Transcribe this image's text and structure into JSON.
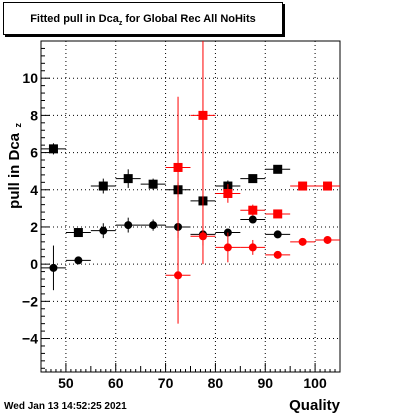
{
  "title": {
    "main": "Fitted pull in Dca",
    "sub": "z",
    "rest": " for Global Rec All NoHits"
  },
  "footer": {
    "timestamp": "Wed Jan 13 14:52:25 2021"
  },
  "colors": {
    "series_black": "#000000",
    "series_red": "#ff0000",
    "grid": "#000000"
  },
  "chart_data": {
    "type": "scatter",
    "xlabel": "Quality",
    "ylabel": "pull in Dca",
    "ylabel_sub": "z",
    "xlim": [
      45,
      105
    ],
    "ylim": [
      -5.8,
      12.0
    ],
    "xticks": [
      50,
      60,
      70,
      80,
      90,
      100
    ],
    "yticks": [
      -4,
      -2,
      0,
      2,
      4,
      6,
      8,
      10
    ],
    "grid": true,
    "series": [
      {
        "marker": "square",
        "color": "#000000",
        "points": [
          {
            "x": 47.5,
            "y": 6.2,
            "yerr": 0.3
          },
          {
            "x": 52.5,
            "y": 1.7,
            "yerr": 0.1
          },
          {
            "x": 57.5,
            "y": 4.2,
            "yerr": 0.4
          },
          {
            "x": 62.5,
            "y": 4.6,
            "yerr": 0.5
          },
          {
            "x": 67.5,
            "y": 4.3,
            "yerr": 0.3
          },
          {
            "x": 72.5,
            "y": 4.0,
            "yerr": 0.4
          },
          {
            "x": 77.5,
            "y": 3.4,
            "yerr": 0.3
          },
          {
            "x": 82.5,
            "y": 4.2,
            "yerr": 0.3
          },
          {
            "x": 87.5,
            "y": 4.6,
            "yerr": 0.2
          },
          {
            "x": 92.5,
            "y": 5.1,
            "yerr": 0.2
          }
        ]
      },
      {
        "marker": "circle",
        "color": "#000000",
        "points": [
          {
            "x": 47.5,
            "y": -0.2,
            "yerr": 1.2
          },
          {
            "x": 52.5,
            "y": 0.2,
            "yerr": 0.1
          },
          {
            "x": 57.5,
            "y": 1.8,
            "yerr": 0.4
          },
          {
            "x": 62.5,
            "y": 2.1,
            "yerr": 0.4
          },
          {
            "x": 67.5,
            "y": 2.1,
            "yerr": 0.3
          },
          {
            "x": 72.5,
            "y": 2.0,
            "yerr": 0.2
          },
          {
            "x": 77.5,
            "y": 1.6,
            "yerr": 0.2
          },
          {
            "x": 82.5,
            "y": 1.7,
            "yerr": 0.2
          },
          {
            "x": 87.5,
            "y": 2.4,
            "yerr": 0.2
          },
          {
            "x": 92.5,
            "y": 1.6,
            "yerr": 0.2
          }
        ]
      },
      {
        "marker": "square",
        "color": "#ff0000",
        "points": [
          {
            "x": 72.5,
            "y": 5.2,
            "yerr": 3.8
          },
          {
            "x": 77.5,
            "y": 8.0,
            "yerr": 8.0
          },
          {
            "x": 82.5,
            "y": 3.8,
            "yerr": 0.5
          },
          {
            "x": 87.5,
            "y": 2.9,
            "yerr": 0.3
          },
          {
            "x": 92.5,
            "y": 2.7,
            "yerr": 0.2
          },
          {
            "x": 97.5,
            "y": 4.2,
            "yerr": 0.1
          },
          {
            "x": 102.5,
            "y": 4.2,
            "yerr": 0.1
          }
        ]
      },
      {
        "marker": "circle",
        "color": "#ff0000",
        "points": [
          {
            "x": 72.5,
            "y": -0.6,
            "yerr": 2.6
          },
          {
            "x": 77.5,
            "y": 1.5,
            "yerr": 0.5
          },
          {
            "x": 82.5,
            "y": 0.9,
            "yerr": 0.8
          },
          {
            "x": 87.5,
            "y": 0.9,
            "yerr": 0.4
          },
          {
            "x": 92.5,
            "y": 0.5,
            "yerr": 0.1
          },
          {
            "x": 97.5,
            "y": 1.2,
            "yerr": 0.1
          },
          {
            "x": 102.5,
            "y": 1.3,
            "yerr": 0.1
          }
        ]
      }
    ]
  }
}
